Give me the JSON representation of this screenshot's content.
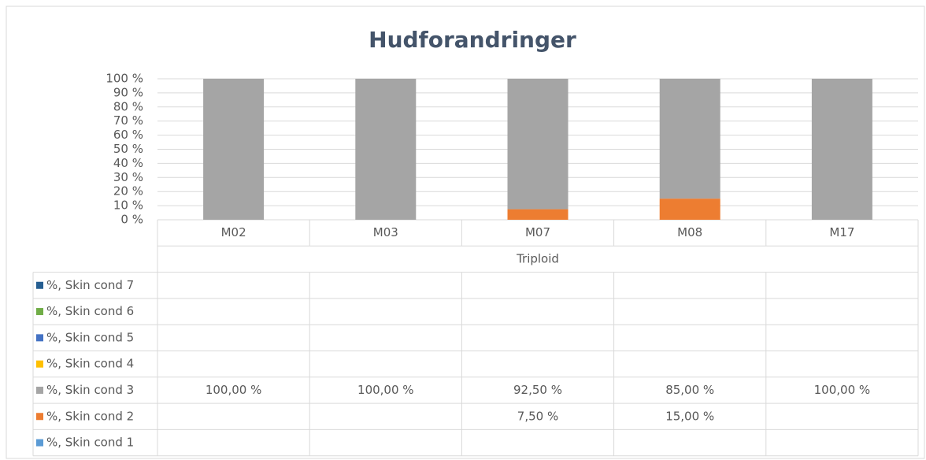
{
  "chart_data": {
    "type": "stacked_bar",
    "title": "Hudforandringer",
    "categories": [
      "M02",
      "M03",
      "M07",
      "M08",
      "M17"
    ],
    "group_label": "Triploid",
    "ylim": [
      0,
      100
    ],
    "yticks": [
      {
        "value": 0,
        "label": "0 %"
      },
      {
        "value": 10,
        "label": "10 %"
      },
      {
        "value": 20,
        "label": "20 %"
      },
      {
        "value": 30,
        "label": "30 %"
      },
      {
        "value": 40,
        "label": "40 %"
      },
      {
        "value": 50,
        "label": "50 %"
      },
      {
        "value": 60,
        "label": "60 %"
      },
      {
        "value": 70,
        "label": "70 %"
      },
      {
        "value": 80,
        "label": "80 %"
      },
      {
        "value": 90,
        "label": "90 %"
      },
      {
        "value": 100,
        "label": "100 %"
      }
    ],
    "grid": true,
    "series": [
      {
        "name": "%, Skin cond 7",
        "color": "#255e91",
        "values": [
          null,
          null,
          null,
          null,
          null
        ]
      },
      {
        "name": "%, Skin cond 6",
        "color": "#70ad47",
        "values": [
          null,
          null,
          null,
          null,
          null
        ]
      },
      {
        "name": "%, Skin cond 5",
        "color": "#4472c4",
        "values": [
          null,
          null,
          null,
          null,
          null
        ]
      },
      {
        "name": "%, Skin cond 4",
        "color": "#ffc000",
        "values": [
          null,
          null,
          null,
          null,
          null
        ]
      },
      {
        "name": "%, Skin cond 3",
        "color": "#a5a5a5",
        "values": [
          100,
          100,
          92.5,
          85,
          100
        ],
        "value_labels": [
          "100,00 %",
          "100,00 %",
          "92,50 %",
          "85,00 %",
          "100,00 %"
        ]
      },
      {
        "name": "%, Skin cond 2",
        "color": "#ed7d31",
        "values": [
          null,
          null,
          7.5,
          15,
          null
        ],
        "value_labels": [
          null,
          null,
          "7,50 %",
          "15,00 %",
          null
        ]
      },
      {
        "name": "%, Skin cond 1",
        "color": "#5b9bd5",
        "values": [
          null,
          null,
          null,
          null,
          null
        ]
      }
    ]
  }
}
